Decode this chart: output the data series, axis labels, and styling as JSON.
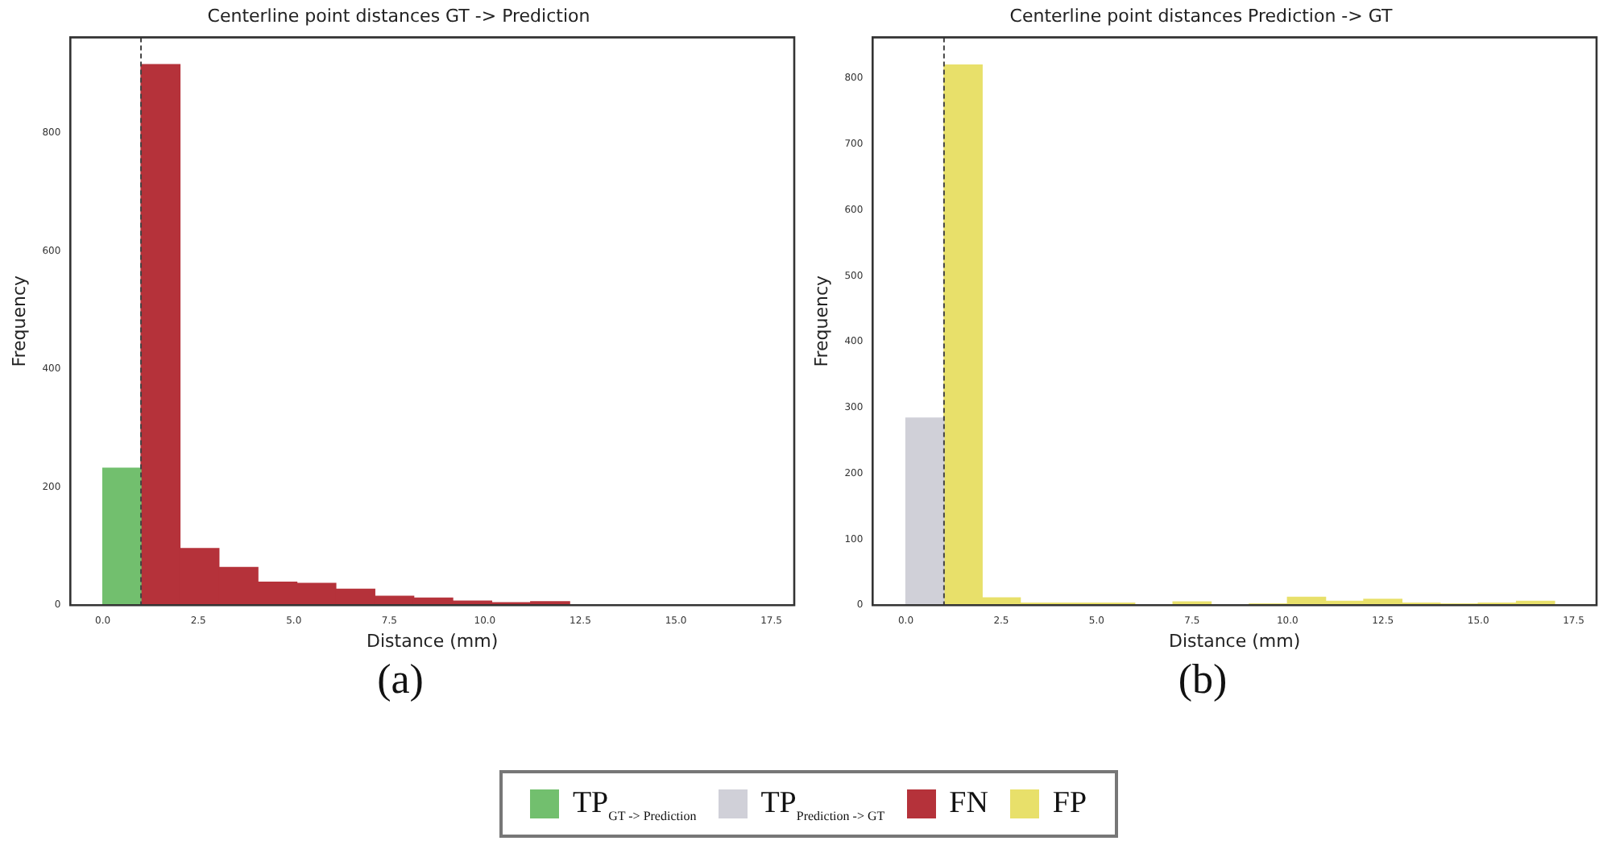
{
  "chart_data": [
    {
      "type": "histogram",
      "title": "Centerline point distances GT -> Prediction",
      "xlabel": "Distance (mm)",
      "ylabel": "Frequency",
      "bins": [
        0,
        1,
        2.02,
        3.04,
        4.06,
        5.08,
        6.1,
        7.12,
        8.14,
        9.16,
        10.18,
        11.2,
        12.22
      ],
      "series": [
        {
          "name": "TP$_{GT -> Prediction}$",
          "color": "#72bf6e",
          "values": [
            232,
            null,
            null,
            null,
            null,
            null,
            null,
            null,
            null,
            null,
            null,
            null
          ]
        },
        {
          "name": "FN",
          "color": "#b5323a",
          "values": [
            null,
            916,
            96,
            64,
            39,
            37,
            27,
            15,
            12,
            7,
            4,
            6
          ]
        }
      ],
      "xlim": [
        -0.85,
        18.1
      ],
      "xticks": [
        {
          "value": 0,
          "label": "0.0"
        },
        {
          "value": 2.5,
          "label": "2.5"
        },
        {
          "value": 5,
          "label": "5.0"
        },
        {
          "value": 7.5,
          "label": "7.5"
        },
        {
          "value": 10,
          "label": "10.0"
        },
        {
          "value": 12.5,
          "label": "12.5"
        },
        {
          "value": 15,
          "label": "15.0"
        },
        {
          "value": 17.5,
          "label": "17.5"
        }
      ],
      "ylim": [
        0,
        962
      ],
      "yticks": [
        0,
        200,
        400,
        600,
        800
      ],
      "ref_lines": [
        {
          "axis": "x",
          "value": 1,
          "color": "#444444",
          "line_style": "dashed"
        }
      ],
      "annotations": [
        "(a)"
      ],
      "grid": false,
      "legend": "bottom"
    },
    {
      "type": "histogram",
      "title": "Centerline point distances Prediction -> GT",
      "xlabel": "Distance (mm)",
      "ylabel": "Frequency",
      "bins": [
        0,
        1,
        2,
        3,
        4,
        5,
        6,
        7,
        8,
        9,
        10,
        11,
        12,
        13,
        14,
        15,
        16,
        17
      ],
      "series": [
        {
          "name": "TP$_{Prediction -> GT}$",
          "color": "#d0d0d8",
          "values": [
            284,
            null,
            null,
            null,
            null,
            null,
            null,
            null,
            null,
            null,
            null,
            null,
            null,
            null,
            null,
            null,
            null
          ]
        },
        {
          "name": "FP",
          "color": "#e8e06a",
          "values": [
            null,
            820,
            11,
            3,
            3,
            3,
            0,
            5,
            0,
            2,
            12,
            6,
            9,
            3,
            2,
            3,
            6
          ]
        }
      ],
      "xlim": [
        -0.87,
        18.1
      ],
      "xticks": [
        {
          "value": 0,
          "label": "0.0"
        },
        {
          "value": 2.5,
          "label": "2.5"
        },
        {
          "value": 5,
          "label": "5.0"
        },
        {
          "value": 7.5,
          "label": "7.5"
        },
        {
          "value": 10,
          "label": "10.0"
        },
        {
          "value": 12.5,
          "label": "12.5"
        },
        {
          "value": 15,
          "label": "15.0"
        },
        {
          "value": 17.5,
          "label": "17.5"
        }
      ],
      "ylim": [
        0,
        862
      ],
      "yticks": [
        0,
        100,
        200,
        300,
        400,
        500,
        600,
        700,
        800
      ],
      "ref_lines": [
        {
          "axis": "x",
          "value": 1,
          "color": "#444444",
          "line_style": "dashed"
        }
      ],
      "annotations": [
        "(b)"
      ],
      "grid": false,
      "legend": "bottom"
    }
  ]
}
